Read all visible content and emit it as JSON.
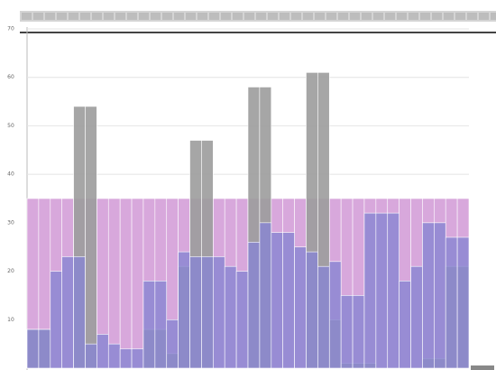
{
  "chart_data": {
    "type": "bar",
    "categories": [
      null,
      null,
      null,
      null,
      null,
      null,
      null,
      null,
      null,
      null,
      null,
      null,
      null,
      null,
      null,
      null,
      null,
      null,
      null,
      null,
      null,
      null,
      null,
      null,
      null,
      null,
      null,
      null,
      null,
      null,
      null,
      null,
      null,
      null,
      null,
      null,
      null,
      null
    ],
    "series": [
      {
        "color": "#d8a8dc",
        "values": [
          35,
          35,
          35,
          35,
          35,
          35,
          35,
          35,
          35,
          35,
          35,
          35,
          35,
          35,
          35,
          35,
          35,
          35,
          35,
          35,
          35,
          35,
          35,
          35,
          35,
          35,
          35,
          35,
          35,
          35,
          35,
          35,
          35,
          35,
          35,
          35,
          35,
          35
        ]
      },
      {
        "color": "#9c9c9c",
        "values": [
          8,
          8,
          null,
          null,
          54,
          54,
          null,
          null,
          null,
          null,
          8,
          8,
          3,
          21,
          47,
          47,
          null,
          null,
          null,
          58,
          58,
          null,
          null,
          null,
          61,
          61,
          10,
          1,
          1,
          1,
          null,
          null,
          null,
          null,
          2,
          2,
          21,
          21
        ]
      },
      {
        "color": "#8884d2",
        "values": [
          8,
          8,
          20,
          23,
          23,
          5,
          7,
          5,
          4,
          4,
          18,
          18,
          10,
          24,
          23,
          23,
          23,
          21,
          20,
          26,
          30,
          28,
          28,
          25,
          24,
          21,
          22,
          15,
          15,
          32,
          32,
          32,
          18,
          21,
          30,
          30,
          27,
          27
        ]
      }
    ],
    "ylim": [
      0,
      70
    ],
    "yticks": [
      10,
      20,
      30,
      40,
      50,
      60,
      70
    ],
    "grid": true
  }
}
